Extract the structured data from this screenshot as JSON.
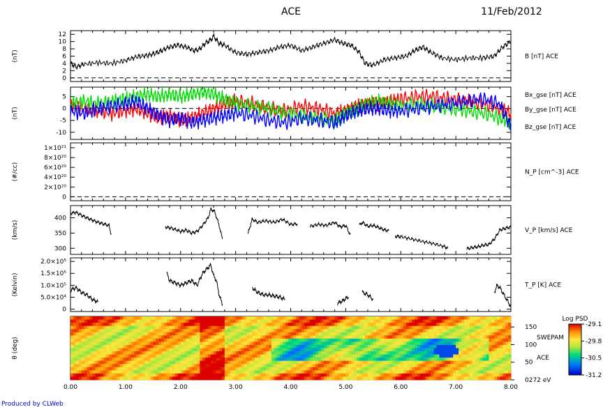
{
  "header": {
    "title": "ACE",
    "date": "11/Feb/2012"
  },
  "footer": {
    "credit": "Produced by CLWeb"
  },
  "chart_data": [
    {
      "type": "line",
      "panel": "B",
      "ylabel": "(nT)",
      "yticks": [
        "0",
        "2",
        "4",
        "6",
        "8",
        "10",
        "12"
      ],
      "ylim": [
        -1,
        13
      ],
      "legend": [
        {
          "name": "B [nT] ACE",
          "color": "#000000"
        }
      ],
      "series": [
        {
          "name": "B [nT] ACE",
          "x": [
            0.0,
            0.1,
            0.25,
            0.5,
            0.75,
            1.0,
            1.2,
            1.4,
            1.55,
            1.65,
            1.8,
            1.95,
            2.1,
            2.25,
            2.35,
            2.45,
            2.55,
            2.6,
            2.7,
            2.8,
            3.0,
            3.2,
            3.4,
            3.6,
            3.8,
            4.0,
            4.2,
            4.4,
            4.6,
            4.8,
            4.95,
            5.1,
            5.25,
            5.35,
            5.5,
            5.7,
            5.9,
            6.1,
            6.25,
            6.4,
            6.55,
            6.75,
            7.0,
            7.25,
            7.5,
            7.7,
            7.85,
            8.0
          ],
          "values": [
            4.0,
            3.0,
            3.8,
            4.2,
            4.0,
            4.8,
            5.8,
            6.2,
            6.8,
            7.5,
            8.5,
            9.0,
            8.5,
            7.5,
            8.0,
            9.5,
            10.5,
            11.5,
            9.5,
            9.0,
            7.0,
            6.5,
            7.0,
            7.5,
            8.5,
            9.0,
            7.5,
            8.5,
            9.5,
            10.5,
            9.5,
            9.0,
            7.0,
            4.0,
            3.5,
            5.0,
            5.5,
            6.0,
            7.5,
            8.5,
            7.0,
            5.5,
            5.0,
            5.5,
            5.5,
            6.0,
            8.5,
            10.0
          ]
        }
      ],
      "reference_line": 0
    },
    {
      "type": "line",
      "panel": "B components",
      "ylabel": "(nT)",
      "yticks": [
        "-10",
        "-5",
        "0",
        "5"
      ],
      "ylim": [
        -13,
        9
      ],
      "legend": [
        {
          "name": "Bx_gse [nT] ACE",
          "color": "#ff0000"
        },
        {
          "name": "By_gse [nT] ACE",
          "color": "#00dd00"
        },
        {
          "name": "Bz_gse [nT] ACE",
          "color": "#0000ff"
        }
      ],
      "series": [
        {
          "name": "Bx_gse [nT] ACE",
          "x": [
            0.0,
            0.25,
            0.5,
            0.75,
            1.0,
            1.2,
            1.4,
            1.6,
            1.8,
            2.0,
            2.2,
            2.4,
            2.6,
            2.8,
            3.0,
            3.3,
            3.6,
            3.9,
            4.2,
            4.5,
            4.8,
            5.0,
            5.2,
            5.4,
            5.6,
            5.8,
            6.0,
            6.3,
            6.6,
            6.9,
            7.2,
            7.5,
            7.8,
            8.0
          ],
          "values": [
            1,
            0,
            -1,
            -2,
            -1,
            0,
            -2,
            -4,
            -3,
            -5,
            -4,
            -2,
            0,
            2,
            3,
            2,
            0,
            -1,
            1,
            0,
            -2,
            -1,
            1,
            2,
            2,
            3,
            4,
            5,
            5,
            4,
            3,
            2,
            0,
            -2
          ]
        },
        {
          "name": "By_gse [nT] ACE",
          "x": [
            0.0,
            0.25,
            0.5,
            0.75,
            1.0,
            1.2,
            1.4,
            1.6,
            1.8,
            2.0,
            2.2,
            2.4,
            2.6,
            2.8,
            3.0,
            3.3,
            3.6,
            3.9,
            4.2,
            4.5,
            4.8,
            5.0,
            5.2,
            5.4,
            5.6,
            5.8,
            6.0,
            6.3,
            6.6,
            6.9,
            7.2,
            7.5,
            7.8,
            8.0
          ],
          "values": [
            2,
            3,
            2,
            3,
            4,
            5,
            6,
            5,
            6,
            5,
            6,
            7,
            6,
            4,
            2,
            1,
            0,
            -2,
            -3,
            -4,
            -5,
            -2,
            0,
            2,
            3,
            2,
            1,
            2,
            1,
            0,
            -1,
            -2,
            -4,
            -6
          ]
        },
        {
          "name": "Bz_gse [nT] ACE",
          "x": [
            0.0,
            0.25,
            0.5,
            0.75,
            1.0,
            1.2,
            1.4,
            1.6,
            1.8,
            2.0,
            2.2,
            2.4,
            2.6,
            2.8,
            3.0,
            3.3,
            3.6,
            3.9,
            4.2,
            4.5,
            4.8,
            5.0,
            5.2,
            5.4,
            5.6,
            5.8,
            6.0,
            6.3,
            6.6,
            6.9,
            7.2,
            7.5,
            7.8,
            8.0
          ],
          "values": [
            -1,
            -2,
            0,
            1,
            2,
            3,
            0,
            -3,
            -5,
            -4,
            -6,
            -5,
            -4,
            -3,
            -2,
            -3,
            -5,
            -6,
            -4,
            -5,
            -6,
            -3,
            -1,
            0,
            0,
            -1,
            -1,
            0,
            1,
            2,
            3,
            4,
            2,
            -8
          ]
        }
      ],
      "reference_line": 0
    },
    {
      "type": "line",
      "panel": "N_P",
      "ylabel": "(#/cc)",
      "yticks": [
        "0",
        "2×10²⁰",
        "4×10²⁰",
        "6×10²⁰",
        "8×10²⁰",
        "1×10²¹"
      ],
      "ylim": [
        -8e+19,
        1.1e+21
      ],
      "legend": [
        {
          "name": "N_P [cm^-3] ACE",
          "color": "#000000"
        }
      ],
      "series": [],
      "reference_line": 0
    },
    {
      "type": "line",
      "panel": "V_P",
      "ylabel": "(km/s)",
      "yticks": [
        "300",
        "350",
        "400"
      ],
      "ylim": [
        280,
        440
      ],
      "legend": [
        {
          "name": "V_P [km/s] ACE",
          "color": "#000000"
        }
      ],
      "series": [
        {
          "name": "V_P [km/s] ACE",
          "x": [
            0.0,
            0.1,
            0.2,
            0.3,
            0.4,
            0.5,
            0.6,
            0.7,
            0.74
          ],
          "values": [
            415,
            418,
            408,
            400,
            392,
            385,
            380,
            375,
            345
          ]
        },
        {
          "name": "V_P [km/s] ACE",
          "x": [
            1.72,
            1.85,
            2.0,
            2.1,
            2.2,
            2.3,
            2.4,
            2.5,
            2.55,
            2.62,
            2.7,
            2.76
          ],
          "values": [
            370,
            365,
            355,
            360,
            350,
            355,
            375,
            400,
            428,
            420,
            375,
            330
          ]
        },
        {
          "name": "V_P [km/s] ACE",
          "x": [
            3.22,
            3.3,
            3.4,
            3.55,
            3.7,
            3.85,
            4.0,
            4.12
          ],
          "values": [
            345,
            395,
            385,
            390,
            385,
            395,
            378,
            380
          ]
        },
        {
          "name": "V_P [km/s] ACE",
          "x": [
            4.35,
            4.5,
            4.65,
            4.8,
            4.9,
            5.0,
            5.08
          ],
          "values": [
            372,
            378,
            375,
            385,
            370,
            375,
            345
          ]
        },
        {
          "name": "V_P [km/s] ACE",
          "x": [
            5.25,
            5.3,
            5.4,
            5.5,
            5.6,
            5.7,
            5.78
          ],
          "values": [
            375,
            385,
            372,
            375,
            368,
            360,
            358
          ]
        },
        {
          "name": "V_P [km/s] ACE",
          "x": [
            5.9,
            6.0,
            6.2,
            6.4,
            6.6,
            6.8,
            6.85
          ],
          "values": [
            340,
            338,
            330,
            322,
            315,
            305,
            300
          ]
        },
        {
          "name": "V_P [km/s] ACE",
          "x": [
            7.2,
            7.3,
            7.4,
            7.5,
            7.6,
            7.7,
            7.8,
            7.9,
            8.0
          ],
          "values": [
            298,
            302,
            305,
            310,
            312,
            330,
            360,
            365,
            370
          ]
        }
      ]
    },
    {
      "type": "line",
      "panel": "T_P",
      "ylabel": "(Kelvin)",
      "yticks": [
        "0",
        "5.0×10⁴",
        "1.0×10⁵",
        "1.5×10⁵",
        "2.0×10⁵"
      ],
      "ylim": [
        -10000,
        215000
      ],
      "legend": [
        {
          "name": "T_P [K] ACE",
          "color": "#000000"
        }
      ],
      "series": [
        {
          "name": "T_P [K] ACE",
          "x": [
            0.0,
            0.1,
            0.2,
            0.3,
            0.4,
            0.5
          ],
          "values": [
            80000,
            90000,
            70000,
            60000,
            40000,
            30000
          ]
        },
        {
          "name": "T_P [K] ACE",
          "x": [
            1.75,
            1.8,
            1.9,
            2.0,
            2.1,
            2.2,
            2.3,
            2.4,
            2.48,
            2.55,
            2.6,
            2.65,
            2.7,
            2.76
          ],
          "values": [
            150000,
            120000,
            110000,
            100000,
            110000,
            120000,
            100000,
            150000,
            170000,
            185000,
            140000,
            120000,
            60000,
            20000
          ]
        },
        {
          "name": "T_P [K] ACE",
          "x": [
            3.3,
            3.4,
            3.5,
            3.6,
            3.7,
            3.8,
            3.9
          ],
          "values": [
            90000,
            70000,
            60000,
            60000,
            55000,
            50000,
            40000
          ]
        },
        {
          "name": "T_P [K] ACE",
          "x": [
            4.85,
            4.9,
            4.95,
            5.0,
            5.05
          ],
          "values": [
            25000,
            30000,
            35000,
            45000,
            50000
          ]
        },
        {
          "name": "T_P [K] ACE",
          "x": [
            5.3,
            5.4,
            5.5
          ],
          "values": [
            70000,
            60000,
            40000
          ]
        },
        {
          "name": "T_P [K] ACE",
          "x": [
            7.7,
            7.75,
            7.8,
            7.9,
            8.0
          ],
          "values": [
            70000,
            100000,
            90000,
            50000,
            10000
          ]
        }
      ]
    },
    {
      "type": "heatmap",
      "panel": "SWEPAM",
      "ylabel": "θ (deg)",
      "yticks": [
        "150",
        "100",
        "50",
        "0272 eV"
      ],
      "ylim": [
        0,
        180
      ],
      "side_labels": [
        "SWEPAM",
        "ACE"
      ],
      "colorbar": {
        "title": "Log PSD",
        "ticks": [
          "-29.1",
          "-29.8",
          "-30.5",
          "-31.2"
        ],
        "range": [
          -31.2,
          -29.1
        ]
      }
    }
  ],
  "xaxis": {
    "ticks": [
      "0.00",
      "1.00",
      "2.00",
      "3.00",
      "4.00",
      "5.00",
      "6.00",
      "7.00",
      "8.00"
    ],
    "xlim": [
      0,
      8
    ]
  }
}
